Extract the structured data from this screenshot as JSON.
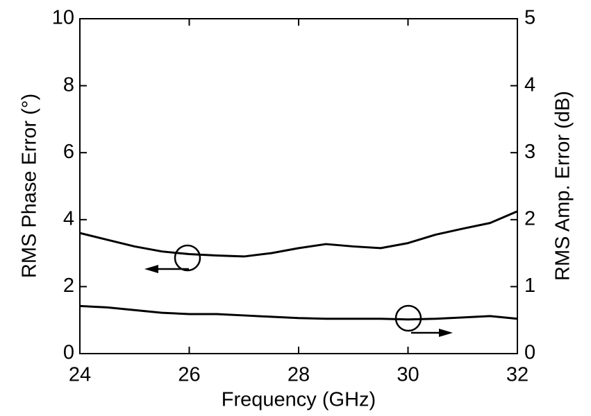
{
  "chart_data": {
    "type": "line",
    "xlabel": "Frequency (GHz)",
    "ylabel": "RMS Phase Error (°)",
    "y2label": "RMS Amp. Error (dB)",
    "x": [
      24,
      24.5,
      25,
      25.5,
      26,
      26.5,
      27,
      27.5,
      28,
      28.5,
      29,
      29.5,
      30,
      30.5,
      31,
      31.5,
      32
    ],
    "series": [
      {
        "color": "#000000",
        "values": [
          3.6,
          3.4,
          3.2,
          3.05,
          2.97,
          2.93,
          2.9,
          3.0,
          3.15,
          3.27,
          3.2,
          3.15,
          3.3,
          3.55,
          3.73,
          3.9,
          4.25
        ]
      },
      {
        "color": "#000000",
        "axis": "y2",
        "values": [
          0.71,
          0.69,
          0.65,
          0.61,
          0.59,
          0.59,
          0.57,
          0.55,
          0.53,
          0.52,
          0.52,
          0.52,
          0.51,
          0.52,
          0.54,
          0.56,
          0.52
        ]
      }
    ],
    "xlim": [
      24,
      32
    ],
    "xticks": [
      24,
      26,
      28,
      30,
      32
    ],
    "ylim": [
      0,
      10
    ],
    "yticks": [
      0,
      2,
      4,
      6,
      8,
      10
    ],
    "y2lim": [
      0,
      5
    ],
    "y2ticks": [
      0,
      1,
      2,
      3,
      4,
      5
    ],
    "grid": false
  }
}
